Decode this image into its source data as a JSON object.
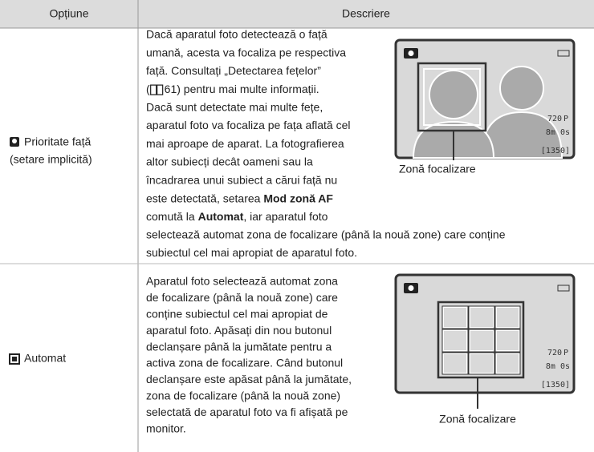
{
  "header": {
    "option": "Opțiune",
    "description": "Descriere"
  },
  "rows": [
    {
      "option": {
        "lines": [
          "Prioritate față",
          "(setare implicită)"
        ]
      },
      "description": {
        "lines": [
          "Dacă aparatul foto detectează o față",
          "umană, acesta va focaliza pe respectiva",
          "față. Consultați „Detectarea fețelor”",
          {
            "before": "(",
            "after": "61) pentru mai multe informații."
          },
          "Dacă sunt detectate mai multe fețe,",
          "aparatul foto va focaliza pe fața aflată cel",
          "mai aproape de aparat. La fotografierea",
          "altor subiecți decât oameni sau la",
          "încadrarea unui subiect a cărui față nu",
          {
            "text": "este detectată, setarea ",
            "bold": "Mod zonă AF"
          },
          {
            "text": "comută la ",
            "bold": "Automat",
            "after": ", iar aparatul foto"
          },
          "selectează automat zona de focalizare (până la nouă zone) care conține",
          "subiectul cel mai apropiat de aparatul foto."
        ]
      },
      "figure": {
        "caption": "Zonă focalizare",
        "screen": {
          "resolution": "720",
          "mode": "P",
          "time": "8m 0s",
          "count": "[1350]"
        }
      }
    },
    {
      "option": {
        "lines": [
          "Automat"
        ]
      },
      "description": {
        "lines": [
          "Aparatul foto selectează automat zona",
          "de focalizare (până la nouă zone) care",
          "conține subiectul cel mai apropiat de",
          "aparatul foto. Apăsați din nou butonul",
          "declanșare până la jumătate pentru a",
          "activa zona de focalizare. Când butonul",
          "declanșare este apăsat până la jumătate,",
          "zona de focalizare (până la nouă zone)",
          "selectată de aparatul foto va fi afișată pe",
          "monitor."
        ]
      },
      "figure": {
        "caption": "Zonă focalizare",
        "screen": {
          "resolution": "720",
          "mode": "P",
          "time": "8m 0s",
          "count": "[1350]"
        }
      }
    }
  ]
}
